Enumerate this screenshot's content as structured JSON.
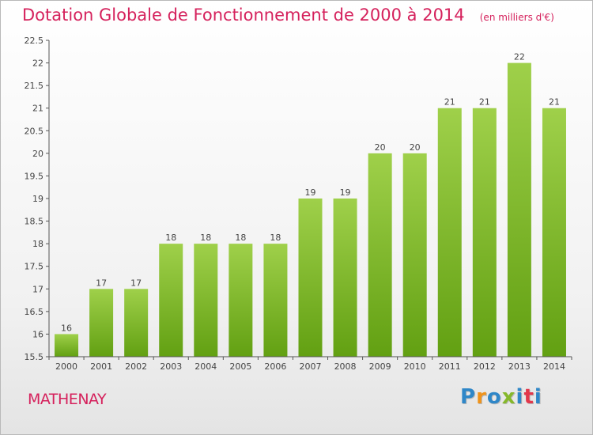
{
  "chart_data": {
    "type": "bar",
    "title": "Dotation Globale de Fonctionnement de 2000 à 2014",
    "unit": "(en milliers d'€)",
    "categories": [
      "2000",
      "2001",
      "2002",
      "2003",
      "2004",
      "2005",
      "2006",
      "2007",
      "2008",
      "2009",
      "2010",
      "2011",
      "2012",
      "2013",
      "2014"
    ],
    "values": [
      16,
      17,
      17,
      18,
      18,
      18,
      18,
      19,
      19,
      20,
      20,
      21,
      21,
      22,
      21
    ],
    "value_labels": [
      "16",
      "17",
      "17",
      "18",
      "18",
      "18",
      "18",
      "19",
      "19",
      "20",
      "20",
      "21",
      "21",
      "22",
      "21"
    ],
    "y_ticks": [
      "15.5",
      "16",
      "16.5",
      "17",
      "17.5",
      "18",
      "18.5",
      "19",
      "19.5",
      "20",
      "20.5",
      "21",
      "21.5",
      "22",
      "22.5"
    ],
    "ylim": [
      15.5,
      22.5
    ],
    "grid": false,
    "bar_color_top": "#9fd04a",
    "bar_color_bottom": "#62a012"
  },
  "footer": {
    "place": "MATHENAY",
    "logo_text": "Proxiti",
    "logo_colors": [
      "#2f87c8",
      "#f0931a",
      "#2f87c8",
      "#86b82b",
      "#2f87c8",
      "#e2374b",
      "#2f87c8"
    ]
  },
  "colors": {
    "title": "#d5215c",
    "axis": "#555555",
    "label": "#444444"
  }
}
